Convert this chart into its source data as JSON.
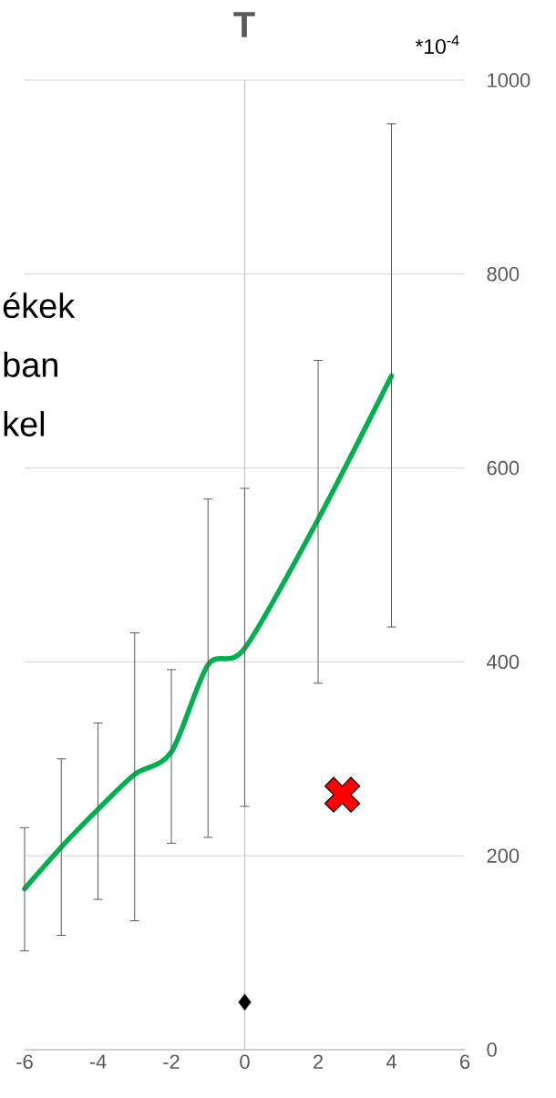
{
  "chart_data": {
    "type": "line",
    "title": "T",
    "annotations": [
      "*10$^{-4}$",
      "ékek",
      "ban",
      "kel"
    ],
    "series": [
      {
        "color": "#00b050",
        "marker": "none",
        "x": [
          -6,
          -5,
          -4,
          -3,
          -2,
          -1,
          0,
          2,
          4
        ],
        "values": [
          166,
          209,
          248,
          284,
          307,
          397,
          414,
          547,
          695
        ],
        "errors": [
          [
            102,
            229
          ],
          [
            118,
            300
          ],
          [
            155,
            337
          ],
          [
            133,
            430
          ],
          [
            213,
            392
          ],
          [
            219,
            568
          ],
          [
            251,
            579
          ],
          [
            378,
            711
          ],
          [
            436,
            955
          ]
        ]
      },
      {
        "type": "scatter",
        "color": "#ff0000",
        "marker": "cross",
        "x": [
          2.66
        ],
        "values": [
          263
        ]
      },
      {
        "type": "scatter",
        "color": "#000000",
        "marker": "diamond",
        "x": [
          0
        ],
        "values": [
          49
        ]
      }
    ],
    "xlim": [
      -6,
      6
    ],
    "xticks": [
      -6,
      -4,
      -2,
      0,
      2,
      4,
      6
    ],
    "ylim": [
      0,
      1000
    ],
    "yticks": [
      0,
      200,
      400,
      600,
      800,
      1000
    ],
    "grid": "y",
    "ref_lines": [
      {
        "axis": "x",
        "value": 0,
        "color": "#bfbfbf"
      }
    ]
  }
}
